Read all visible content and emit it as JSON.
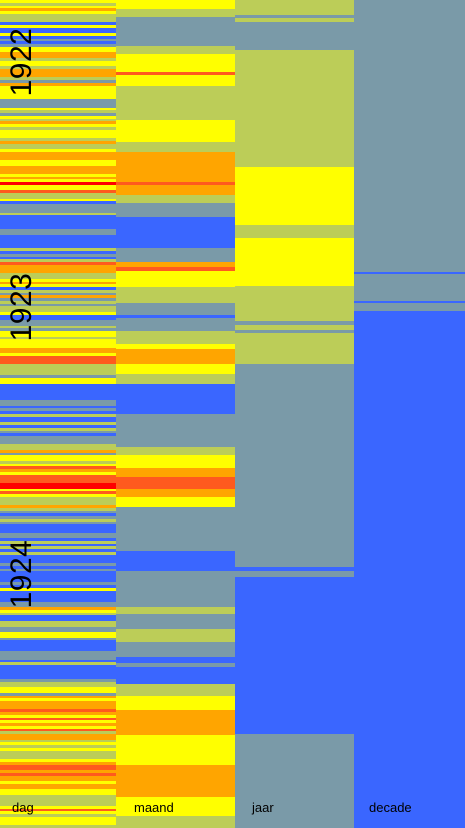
{
  "chart_data": {
    "type": "heatmap",
    "title": "",
    "columns": [
      "dag",
      "maand",
      "jaar",
      "decade"
    ],
    "years": [
      "1922",
      "1923",
      "1924"
    ],
    "colors": {
      "red": "#ff0000",
      "orange_red": "#ff5a1e",
      "orange": "#ffa500",
      "yellow": "#ffff00",
      "olive": "#bccd58",
      "grey": "#7a9aa8",
      "blue": "#3a66ff"
    },
    "maand_bands": [
      [
        "yellow",
        0.0,
        0.011
      ],
      [
        "olive",
        0.011,
        0.02
      ],
      [
        "grey",
        0.02,
        0.055
      ],
      [
        "olive",
        0.055,
        0.065
      ],
      [
        "yellow",
        0.065,
        0.087
      ],
      [
        "orange_red",
        0.087,
        0.091
      ],
      [
        "yellow",
        0.091,
        0.104
      ],
      [
        "olive",
        0.104,
        0.145
      ],
      [
        "yellow",
        0.145,
        0.172
      ],
      [
        "olive",
        0.172,
        0.184
      ],
      [
        "orange",
        0.184,
        0.22
      ],
      [
        "orange_red",
        0.22,
        0.224
      ],
      [
        "orange",
        0.224,
        0.235
      ],
      [
        "olive",
        0.235,
        0.245
      ],
      [
        "grey",
        0.245,
        0.262
      ],
      [
        "blue",
        0.262,
        0.299
      ],
      [
        "grey",
        0.299,
        0.317
      ],
      [
        "orange",
        0.317,
        0.323
      ],
      [
        "orange_red",
        0.323,
        0.327
      ],
      [
        "yellow",
        0.327,
        0.347
      ],
      [
        "olive",
        0.347,
        0.366
      ],
      [
        "grey",
        0.366,
        0.38
      ],
      [
        "blue",
        0.38,
        0.384
      ],
      [
        "grey",
        0.384,
        0.4
      ],
      [
        "olive",
        0.4,
        0.415
      ],
      [
        "yellow",
        0.415,
        0.422
      ],
      [
        "orange",
        0.422,
        0.44
      ],
      [
        "yellow",
        0.44,
        0.452
      ],
      [
        "olive",
        0.452,
        0.464
      ],
      [
        "blue",
        0.464,
        0.5
      ],
      [
        "grey",
        0.5,
        0.54
      ],
      [
        "olive",
        0.54,
        0.55
      ],
      [
        "yellow",
        0.55,
        0.565
      ],
      [
        "orange",
        0.565,
        0.576
      ],
      [
        "orange_red",
        0.576,
        0.59
      ],
      [
        "orange",
        0.59,
        0.6
      ],
      [
        "yellow",
        0.6,
        0.612
      ],
      [
        "grey",
        0.612,
        0.665
      ],
      [
        "blue",
        0.665,
        0.69
      ],
      [
        "grey",
        0.69,
        0.733
      ],
      [
        "olive",
        0.733,
        0.742
      ],
      [
        "grey",
        0.742,
        0.76
      ],
      [
        "olive",
        0.76,
        0.775
      ],
      [
        "grey",
        0.775,
        0.793
      ],
      [
        "blue",
        0.793,
        0.801
      ],
      [
        "grey",
        0.801,
        0.805
      ],
      [
        "blue",
        0.805,
        0.826
      ],
      [
        "olive",
        0.826,
        0.84
      ],
      [
        "yellow",
        0.84,
        0.857
      ],
      [
        "orange",
        0.857,
        0.888
      ],
      [
        "yellow",
        0.888,
        0.924
      ],
      [
        "orange",
        0.924,
        0.962
      ],
      [
        "yellow",
        0.962,
        0.985
      ],
      [
        "olive",
        0.985,
        1.0
      ]
    ],
    "jaar_bands": [
      [
        "olive",
        0.0,
        0.018
      ],
      [
        "grey",
        0.018,
        0.022
      ],
      [
        "olive",
        0.022,
        0.026
      ],
      [
        "grey",
        0.026,
        0.06
      ],
      [
        "olive",
        0.06,
        0.202
      ],
      [
        "yellow",
        0.202,
        0.272
      ],
      [
        "olive",
        0.272,
        0.288
      ],
      [
        "yellow",
        0.288,
        0.345
      ],
      [
        "olive",
        0.345,
        0.388
      ],
      [
        "grey",
        0.388,
        0.393
      ],
      [
        "olive",
        0.393,
        0.398
      ],
      [
        "grey",
        0.398,
        0.402
      ],
      [
        "olive",
        0.402,
        0.44
      ],
      [
        "grey",
        0.44,
        0.685
      ],
      [
        "blue",
        0.685,
        0.69
      ],
      [
        "grey",
        0.69,
        0.697
      ],
      [
        "blue",
        0.697,
        0.886
      ],
      [
        "grey",
        0.886,
        1.0
      ]
    ],
    "decade_bands": [
      [
        "grey",
        0.0,
        0.328
      ],
      [
        "blue",
        0.328,
        0.331
      ],
      [
        "grey",
        0.331,
        0.363
      ],
      [
        "blue",
        0.363,
        0.366
      ],
      [
        "grey",
        0.366,
        0.376
      ],
      [
        "blue",
        0.376,
        1.0
      ]
    ]
  }
}
